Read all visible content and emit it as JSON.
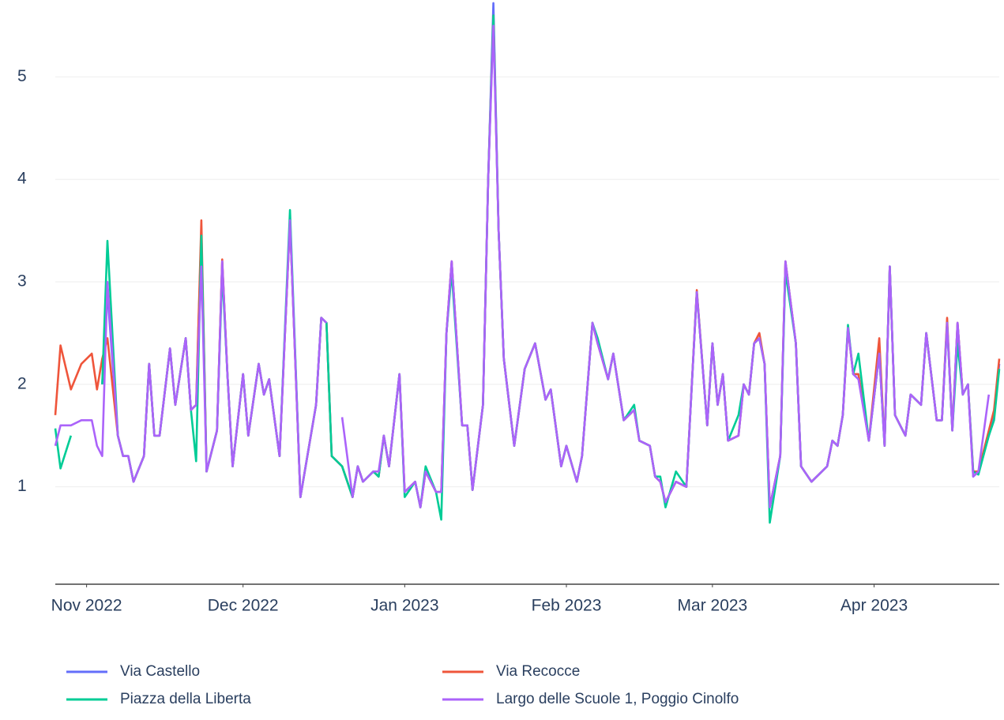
{
  "chart_data": {
    "type": "line",
    "x": [
      -6,
      -5,
      -3,
      -1,
      1,
      2,
      3,
      4,
      6,
      7,
      8,
      9,
      11,
      12,
      13,
      14,
      16,
      17,
      19,
      20,
      21,
      22,
      23,
      25,
      26,
      27,
      28,
      30,
      31,
      33,
      34,
      35,
      37,
      39,
      41,
      42,
      44,
      45,
      46,
      47,
      49,
      51,
      52,
      53,
      55,
      56,
      57,
      58,
      60,
      61,
      63,
      64,
      65,
      67,
      68,
      69,
      70,
      72,
      73,
      74,
      76,
      77,
      78,
      79,
      80,
      82,
      84,
      86,
      88,
      89,
      91,
      92,
      94,
      95,
      97,
      98,
      100,
      101,
      103,
      105,
      106,
      108,
      109,
      110,
      111,
      113,
      115,
      117,
      119,
      120,
      121,
      122,
      123,
      125,
      126,
      127,
      128,
      129,
      130,
      131,
      133,
      134,
      136,
      137,
      139,
      142,
      143,
      144,
      145,
      146,
      147,
      148,
      150,
      152,
      153,
      154,
      155,
      157,
      158,
      160,
      161,
      163,
      164,
      165,
      166,
      167,
      168,
      169,
      170,
      171,
      173,
      174,
      175
    ],
    "xlim": [
      -6,
      175
    ],
    "xticks": [
      {
        "value": 0,
        "label": "Nov 2022"
      },
      {
        "value": 30,
        "label": "Dec 2022"
      },
      {
        "value": 61,
        "label": "Jan 2023"
      },
      {
        "value": 92,
        "label": "Feb 2023"
      },
      {
        "value": 120,
        "label": "Mar 2023"
      },
      {
        "value": 151,
        "label": "Apr 2023"
      }
    ],
    "ylim": [
      0.05,
      5.75
    ],
    "yticks": [
      1,
      2,
      3,
      4,
      5
    ],
    "grid": true,
    "series": [
      {
        "name": "Via Castello",
        "color": "#636efa",
        "values": [
          null,
          null,
          null,
          null,
          null,
          null,
          2.0,
          2.9,
          1.5,
          1.3,
          1.3,
          1.05,
          1.3,
          2.2,
          1.5,
          1.5,
          2.35,
          1.8,
          2.45,
          1.75,
          1.8,
          3.5,
          1.15,
          1.55,
          3.2,
          2.1,
          1.2,
          2.1,
          1.5,
          2.2,
          1.9,
          2.05,
          1.3,
          3.6,
          0.9,
          1.2,
          1.8,
          2.65,
          2.6,
          1.3,
          1.2,
          0.9,
          1.2,
          1.05,
          1.15,
          1.1,
          1.5,
          1.2,
          2.1,
          0.95,
          1.05,
          0.8,
          1.15,
          0.95,
          0.95,
          2.5,
          3.2,
          1.6,
          1.6,
          0.97,
          1.8,
          4.0,
          5.72,
          3.5,
          2.25,
          1.4,
          2.15,
          2.4,
          1.85,
          1.95,
          1.2,
          1.4,
          1.05,
          1.3,
          2.6,
          2.4,
          2.05,
          2.3,
          1.65,
          1.75,
          1.45,
          1.4,
          1.1,
          1.05,
          0.85,
          1.05,
          1.0,
          2.9,
          1.6,
          2.4,
          1.8,
          2.1,
          1.45,
          1.5,
          2.0,
          1.9,
          2.4,
          2.45,
          2.2,
          0.8,
          1.3,
          3.2,
          2.4,
          1.2,
          1.05,
          1.2,
          1.45,
          1.4,
          1.7,
          2.55,
          2.1,
          2.1,
          1.45,
          2.3,
          1.4,
          3.15,
          1.7,
          1.5,
          1.9,
          1.8,
          2.5,
          1.65,
          1.65,
          2.6,
          1.55,
          2.6,
          1.9,
          2.0,
          1.1,
          1.15,
          1.5,
          1.7,
          2.2
        ]
      },
      {
        "name": "Via Recocce",
        "color": "#ef553b",
        "values": [
          1.7,
          2.38,
          1.95,
          2.2,
          2.3,
          1.95,
          2.25,
          2.45,
          1.5,
          1.3,
          1.3,
          1.05,
          1.3,
          2.2,
          1.5,
          1.5,
          2.35,
          1.8,
          2.45,
          1.75,
          1.8,
          3.6,
          1.15,
          1.55,
          3.22,
          2.1,
          1.2,
          2.1,
          1.5,
          2.2,
          1.9,
          2.05,
          1.3,
          3.6,
          0.9,
          1.2,
          1.8,
          2.65,
          2.6,
          1.3,
          1.2,
          0.9,
          1.2,
          1.05,
          1.15,
          1.1,
          1.5,
          1.2,
          2.1,
          0.95,
          1.05,
          0.8,
          1.15,
          0.95,
          0.95,
          2.5,
          3.2,
          1.6,
          1.6,
          0.97,
          1.8,
          4.0,
          5.6,
          3.5,
          2.25,
          1.4,
          2.15,
          2.4,
          1.85,
          1.95,
          1.2,
          1.4,
          1.05,
          1.3,
          2.6,
          2.4,
          2.05,
          2.3,
          1.65,
          1.75,
          1.45,
          1.4,
          1.1,
          1.05,
          0.85,
          1.05,
          1.0,
          2.92,
          1.6,
          2.4,
          1.8,
          2.1,
          1.45,
          1.5,
          2.0,
          1.9,
          2.4,
          2.5,
          2.2,
          0.8,
          1.3,
          3.2,
          2.4,
          1.2,
          1.05,
          1.2,
          1.45,
          1.4,
          1.7,
          2.55,
          2.1,
          2.1,
          1.45,
          2.45,
          1.4,
          3.15,
          1.7,
          1.5,
          1.9,
          1.8,
          2.5,
          1.65,
          1.65,
          2.65,
          1.55,
          2.6,
          1.9,
          2.0,
          1.15,
          1.15,
          1.55,
          1.75,
          2.25
        ]
      },
      {
        "name": "Piazza della Liberta",
        "color": "#00cc96",
        "values": [
          1.57,
          1.18,
          1.5,
          null,
          null,
          null,
          2.0,
          3.4,
          1.5,
          1.3,
          1.3,
          1.05,
          1.3,
          2.2,
          1.5,
          1.5,
          2.35,
          1.8,
          2.45,
          1.75,
          1.25,
          3.45,
          1.15,
          1.55,
          3.1,
          2.1,
          1.2,
          2.1,
          1.5,
          2.2,
          1.9,
          2.05,
          1.3,
          3.7,
          0.9,
          1.2,
          1.8,
          2.65,
          2.6,
          1.3,
          1.2,
          0.9,
          1.2,
          1.05,
          1.15,
          1.1,
          1.5,
          1.2,
          2.1,
          0.9,
          1.05,
          0.8,
          1.2,
          0.95,
          0.68,
          2.5,
          3.1,
          1.6,
          1.6,
          0.97,
          1.8,
          4.0,
          5.6,
          3.5,
          2.25,
          1.4,
          2.15,
          2.4,
          1.85,
          1.95,
          1.2,
          1.4,
          1.05,
          1.3,
          2.6,
          2.45,
          2.05,
          2.3,
          1.65,
          1.8,
          1.45,
          1.4,
          1.1,
          1.1,
          0.8,
          1.15,
          1.0,
          2.9,
          1.6,
          2.4,
          1.8,
          2.1,
          1.45,
          1.7,
          2.0,
          1.9,
          2.4,
          2.45,
          2.2,
          0.65,
          1.3,
          3.1,
          2.4,
          1.2,
          1.05,
          1.2,
          1.45,
          1.4,
          1.7,
          2.58,
          2.1,
          2.3,
          1.45,
          2.3,
          1.4,
          3.15,
          1.7,
          1.5,
          1.9,
          1.8,
          2.5,
          1.65,
          1.65,
          2.6,
          1.55,
          2.4,
          1.9,
          2.0,
          1.15,
          1.12,
          1.5,
          1.65,
          2.15
        ]
      },
      {
        "name": "Largo delle Scuole 1, Poggio Cinolfo",
        "color": "#ab63fa",
        "values": [
          1.4,
          1.6,
          1.6,
          1.65,
          1.65,
          1.4,
          1.3,
          3.0,
          1.5,
          1.3,
          1.3,
          1.05,
          1.3,
          2.2,
          1.5,
          1.5,
          2.35,
          1.8,
          2.45,
          1.75,
          1.8,
          3.15,
          1.15,
          1.55,
          3.2,
          2.1,
          1.2,
          2.1,
          1.5,
          2.2,
          1.9,
          2.05,
          1.3,
          3.6,
          0.9,
          1.2,
          1.8,
          2.65,
          2.6,
          null,
          1.68,
          0.9,
          1.2,
          1.05,
          1.15,
          1.15,
          1.5,
          1.2,
          2.1,
          0.95,
          1.05,
          0.8,
          1.15,
          0.95,
          0.95,
          2.5,
          3.2,
          1.6,
          1.6,
          0.97,
          1.8,
          4.0,
          5.5,
          3.5,
          2.25,
          1.4,
          2.15,
          2.4,
          1.85,
          1.95,
          1.2,
          1.4,
          1.05,
          1.3,
          2.6,
          2.4,
          2.05,
          2.3,
          1.65,
          1.75,
          1.45,
          1.4,
          1.1,
          1.05,
          0.85,
          1.05,
          1.0,
          2.9,
          1.6,
          2.4,
          1.8,
          2.1,
          1.45,
          1.5,
          2.0,
          1.9,
          2.4,
          2.45,
          2.2,
          0.8,
          1.3,
          3.2,
          2.4,
          1.2,
          1.05,
          1.2,
          1.45,
          1.4,
          1.7,
          2.55,
          2.1,
          2.05,
          1.45,
          2.3,
          1.4,
          3.15,
          1.7,
          1.5,
          1.9,
          1.8,
          2.5,
          1.65,
          1.65,
          2.6,
          1.55,
          2.6,
          1.9,
          2.0,
          1.1,
          1.15,
          1.9,
          null,
          null
        ]
      }
    ]
  }
}
